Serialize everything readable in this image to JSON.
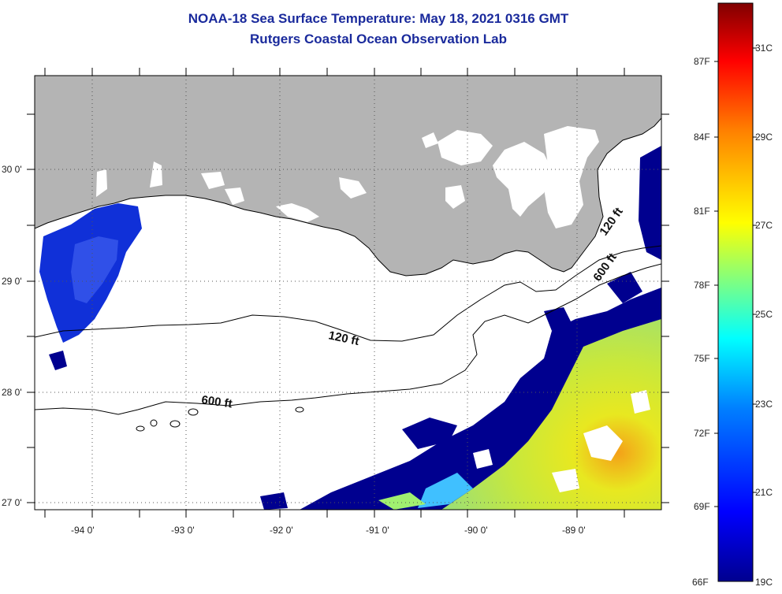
{
  "map": {
    "title_line1": "NOAA-18 Sea Surface Temperature:  May 18, 2021 0316 GMT",
    "title_line2": "Rutgers Coastal Ocean Observation Lab",
    "longitude_labels": [
      "-94 0'",
      "-93 0'",
      "-92 0'",
      "-91 0'",
      "-90 0'",
      "-89 0'"
    ],
    "latitude_labels": [
      "30 0'",
      "29 0'",
      "28 0'",
      "27 0'"
    ],
    "contours": [
      "120 ft",
      "600 ft",
      "120 ft",
      "600 ft"
    ],
    "colors": {
      "land": "#b4b4b4",
      "cloud": "#ffffff",
      "title": "#1a2a9c"
    }
  },
  "colorbar": {
    "fahrenheit_labels": [
      "87F",
      "84F",
      "81F",
      "78F",
      "75F",
      "72F",
      "69F",
      "66F"
    ],
    "celsius_labels": [
      "31C",
      "29C",
      "27C",
      "25C",
      "23C",
      "21C",
      "19C"
    ],
    "colors": [
      "#00008f",
      "#0000ff",
      "#0080ff",
      "#00ffff",
      "#80ff80",
      "#ffff00",
      "#ff8000",
      "#ff0000",
      "#800000"
    ]
  }
}
